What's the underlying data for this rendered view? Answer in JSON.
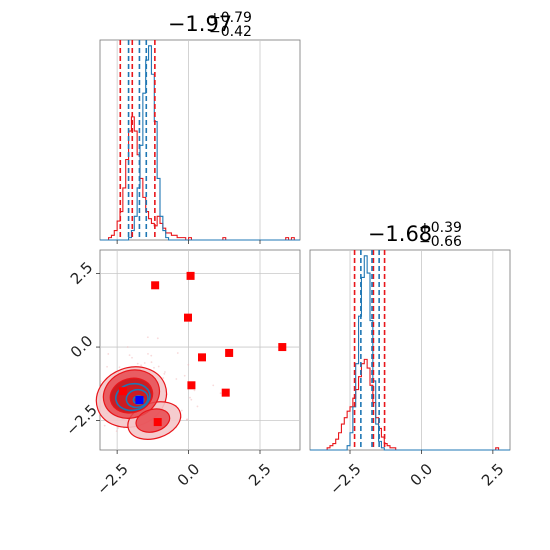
{
  "colors": {
    "red": "#e8161b",
    "blue": "#1f77b4",
    "grid": "#c8c8c8",
    "marker_red": "#ff0000",
    "marker_blue": "#0000ff"
  },
  "titles": {
    "top": {
      "value": "−1.97",
      "plus": "+0.79",
      "minus": "−0.42"
    },
    "right": {
      "value": "−1.68",
      "plus": "+0.39",
      "minus": "−0.66"
    }
  },
  "ticks": {
    "values": [
      -2.5,
      0.0,
      2.5
    ],
    "labels": [
      "−2.5",
      "0.0",
      "2.5"
    ]
  },
  "chart_data": [
    {
      "type": "histogram",
      "panel": "top-left",
      "xlim": [
        -3.1,
        3.9
      ],
      "bin_edges_start": -3.1,
      "bin_width": 0.1,
      "series": [
        {
          "name": "",
          "color": "#e8161b",
          "counts": [
            0,
            0,
            0,
            1,
            2,
            4,
            8,
            12,
            22,
            34,
            46,
            52,
            46,
            36,
            26,
            18,
            12,
            9,
            7,
            6,
            10,
            7,
            5,
            3,
            3,
            2,
            2,
            1,
            1,
            1,
            0,
            1,
            0,
            0,
            0,
            0,
            0,
            0,
            0,
            0,
            0,
            0,
            0,
            1,
            0,
            0,
            0,
            0,
            0,
            0,
            0,
            0,
            0,
            0,
            0,
            0,
            0,
            0,
            0,
            0,
            0,
            0,
            0,
            0,
            0,
            1,
            0,
            1,
            0,
            0
          ]
        },
        {
          "name": "",
          "color": "#1f77b4",
          "counts": [
            0,
            0,
            0,
            0,
            0,
            0,
            0,
            0,
            0,
            0,
            1,
            4,
            10,
            22,
            40,
            62,
            76,
            82,
            70,
            50,
            26,
            10,
            4,
            1,
            0,
            0,
            0,
            0,
            0,
            0,
            0,
            0,
            0,
            0,
            0,
            0,
            0,
            0,
            0,
            0,
            0,
            0,
            0,
            0,
            0,
            0,
            0,
            0,
            0,
            0,
            0,
            0,
            0,
            0,
            0,
            0,
            0,
            0,
            0,
            0,
            0,
            0,
            0,
            0,
            0,
            0,
            0,
            0,
            0,
            0
          ]
        }
      ],
      "quantile_lines_red": [
        -2.39,
        -1.97,
        -1.18
      ],
      "quantile_lines_blue": [
        -2.1,
        -1.72,
        -1.48
      ]
    },
    {
      "type": "scatter",
      "panel": "bottom-left",
      "xlim": [
        -3.1,
        3.9
      ],
      "ylim": [
        -3.5,
        3.3
      ],
      "red_points": [
        [
          -1.17,
          2.1
        ],
        [
          0.07,
          2.42
        ],
        [
          -0.02,
          1.0
        ],
        [
          0.47,
          -0.35
        ],
        [
          1.42,
          -0.2
        ],
        [
          3.28,
          0.0
        ],
        [
          0.1,
          -1.3
        ],
        [
          1.3,
          -1.55
        ],
        [
          -2.3,
          -1.5
        ],
        [
          -1.08,
          -2.55
        ]
      ],
      "blue_points": [
        [
          -1.72,
          -1.8
        ]
      ],
      "contours": [
        "red density contours",
        "blue density contours"
      ]
    },
    {
      "type": "histogram",
      "panel": "bottom-right",
      "xlim": [
        -3.9,
        3.1
      ],
      "bin_edges_start": -3.9,
      "bin_width": 0.1,
      "series": [
        {
          "name": "",
          "color": "#e8161b",
          "counts": [
            0,
            0,
            0,
            0,
            0,
            0,
            1,
            2,
            3,
            5,
            8,
            12,
            15,
            18,
            20,
            24,
            28,
            34,
            40,
            42,
            38,
            30,
            22,
            15,
            10,
            6,
            3,
            2,
            1,
            1,
            0,
            0,
            0,
            0,
            0,
            0,
            0,
            0,
            0,
            0,
            0,
            0,
            0,
            0,
            0,
            0,
            0,
            0,
            0,
            0,
            0,
            0,
            0,
            0,
            0,
            0,
            0,
            0,
            0,
            0,
            0,
            0,
            0,
            0,
            0,
            1,
            0,
            0,
            0,
            0
          ]
        },
        {
          "name": "",
          "color": "#1f77b4",
          "counts": [
            0,
            0,
            0,
            0,
            0,
            0,
            0,
            0,
            0,
            0,
            0,
            0,
            0,
            2,
            8,
            20,
            40,
            62,
            80,
            90,
            82,
            60,
            32,
            12,
            4,
            1,
            0,
            0,
            0,
            0,
            0,
            0,
            0,
            0,
            0,
            0,
            0,
            0,
            0,
            0,
            0,
            0,
            0,
            0,
            0,
            0,
            0,
            0,
            0,
            0,
            0,
            0,
            0,
            0,
            0,
            0,
            0,
            0,
            0,
            0,
            0,
            0,
            0,
            0,
            0,
            0,
            0,
            0,
            0,
            0
          ]
        }
      ],
      "quantile_lines_red": [
        -2.34,
        -1.68,
        -1.29
      ],
      "quantile_lines_blue": [
        -2.12,
        -1.73,
        -1.48
      ]
    }
  ]
}
